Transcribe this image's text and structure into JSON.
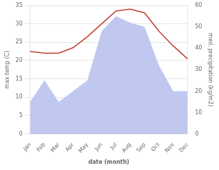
{
  "chart_data": {
    "type": "line",
    "xlabel": "date (month)",
    "ylabel": "max temp (C)",
    "y2label": "med. precipitation (kg/m2)",
    "categories": [
      "Jan",
      "Feb",
      "Mar",
      "Apr",
      "May",
      "Jun",
      "Jul",
      "Aug",
      "Sep",
      "Oct",
      "Nov",
      "Dec"
    ],
    "series": [
      {
        "type": "line",
        "color": "#c0392b",
        "values": [
          22.5,
          22.0,
          22.0,
          23.5,
          26.5,
          30.0,
          33.5,
          34.0,
          33.0,
          28.0,
          24.0,
          20.5
        ]
      },
      {
        "type": "area",
        "color": "#c0c8f0",
        "axis": "y2",
        "values": [
          15,
          25,
          15,
          20,
          25,
          48,
          55,
          52,
          50,
          32,
          20,
          20
        ]
      }
    ],
    "ylim": [
      0,
      35
    ],
    "yticks": [
      0,
      5,
      10,
      15,
      20,
      25,
      30,
      35
    ],
    "y2lim": [
      0,
      60
    ],
    "y2ticks": [
      0,
      10,
      20,
      30,
      40,
      50,
      60
    ],
    "grid": true
  }
}
